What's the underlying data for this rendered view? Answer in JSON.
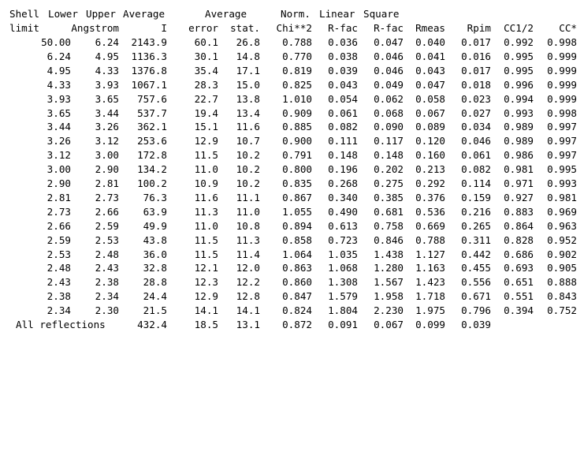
{
  "header_line1": [
    "Shell",
    "Lower",
    "Upper",
    "Average",
    "Average",
    "Norm.",
    "Linear",
    "Square"
  ],
  "header_line2": [
    "limit",
    "Angstrom",
    "I",
    "error",
    "stat.",
    "Chi**2",
    "R-fac",
    "R-fac",
    "Rmeas",
    "Rpim",
    "CC1/2",
    "CC*"
  ],
  "rows": [
    [
      "50.00",
      "6.24",
      "2143.9",
      "60.1",
      "26.8",
      "0.788",
      "0.036",
      "0.047",
      "0.040",
      "0.017",
      "0.992",
      "0.998"
    ],
    [
      "6.24",
      "4.95",
      "1136.3",
      "30.1",
      "14.8",
      "0.770",
      "0.038",
      "0.046",
      "0.041",
      "0.016",
      "0.995",
      "0.999"
    ],
    [
      "4.95",
      "4.33",
      "1376.8",
      "35.4",
      "17.1",
      "0.819",
      "0.039",
      "0.046",
      "0.043",
      "0.017",
      "0.995",
      "0.999"
    ],
    [
      "4.33",
      "3.93",
      "1067.1",
      "28.3",
      "15.0",
      "0.825",
      "0.043",
      "0.049",
      "0.047",
      "0.018",
      "0.996",
      "0.999"
    ],
    [
      "3.93",
      "3.65",
      "757.6",
      "22.7",
      "13.8",
      "1.010",
      "0.054",
      "0.062",
      "0.058",
      "0.023",
      "0.994",
      "0.999"
    ],
    [
      "3.65",
      "3.44",
      "537.7",
      "19.4",
      "13.4",
      "0.909",
      "0.061",
      "0.068",
      "0.067",
      "0.027",
      "0.993",
      "0.998"
    ],
    [
      "3.44",
      "3.26",
      "362.1",
      "15.1",
      "11.6",
      "0.885",
      "0.082",
      "0.090",
      "0.089",
      "0.034",
      "0.989",
      "0.997"
    ],
    [
      "3.26",
      "3.12",
      "253.6",
      "12.9",
      "10.7",
      "0.900",
      "0.111",
      "0.117",
      "0.120",
      "0.046",
      "0.989",
      "0.997"
    ],
    [
      "3.12",
      "3.00",
      "172.8",
      "11.5",
      "10.2",
      "0.791",
      "0.148",
      "0.148",
      "0.160",
      "0.061",
      "0.986",
      "0.997"
    ],
    [
      "3.00",
      "2.90",
      "134.2",
      "11.0",
      "10.2",
      "0.800",
      "0.196",
      "0.202",
      "0.213",
      "0.082",
      "0.981",
      "0.995"
    ],
    [
      "2.90",
      "2.81",
      "100.2",
      "10.9",
      "10.2",
      "0.835",
      "0.268",
      "0.275",
      "0.292",
      "0.114",
      "0.971",
      "0.993"
    ],
    [
      "2.81",
      "2.73",
      "76.3",
      "11.6",
      "11.1",
      "0.867",
      "0.340",
      "0.385",
      "0.376",
      "0.159",
      "0.927",
      "0.981"
    ],
    [
      "2.73",
      "2.66",
      "63.9",
      "11.3",
      "11.0",
      "1.055",
      "0.490",
      "0.681",
      "0.536",
      "0.216",
      "0.883",
      "0.969"
    ],
    [
      "2.66",
      "2.59",
      "49.9",
      "11.0",
      "10.8",
      "0.894",
      "0.613",
      "0.758",
      "0.669",
      "0.265",
      "0.864",
      "0.963"
    ],
    [
      "2.59",
      "2.53",
      "43.8",
      "11.5",
      "11.3",
      "0.858",
      "0.723",
      "0.846",
      "0.788",
      "0.311",
      "0.828",
      "0.952"
    ],
    [
      "2.53",
      "2.48",
      "36.0",
      "11.5",
      "11.4",
      "1.064",
      "1.035",
      "1.438",
      "1.127",
      "0.442",
      "0.686",
      "0.902"
    ],
    [
      "2.48",
      "2.43",
      "32.8",
      "12.1",
      "12.0",
      "0.863",
      "1.068",
      "1.280",
      "1.163",
      "0.455",
      "0.693",
      "0.905"
    ],
    [
      "2.43",
      "2.38",
      "28.8",
      "12.3",
      "12.2",
      "0.860",
      "1.308",
      "1.567",
      "1.423",
      "0.556",
      "0.651",
      "0.888"
    ],
    [
      "2.38",
      "2.34",
      "24.4",
      "12.9",
      "12.8",
      "0.847",
      "1.579",
      "1.958",
      "1.718",
      "0.671",
      "0.551",
      "0.843"
    ],
    [
      "2.34",
      "2.30",
      "21.5",
      "14.1",
      "14.1",
      "0.824",
      "1.804",
      "2.230",
      "1.975",
      "0.796",
      "0.394",
      "0.752"
    ]
  ],
  "summary": {
    "label": "All reflections",
    "values": [
      "432.4",
      "18.5",
      "13.1",
      "0.872",
      "0.091",
      "0.067",
      "0.099",
      "0.039"
    ]
  }
}
